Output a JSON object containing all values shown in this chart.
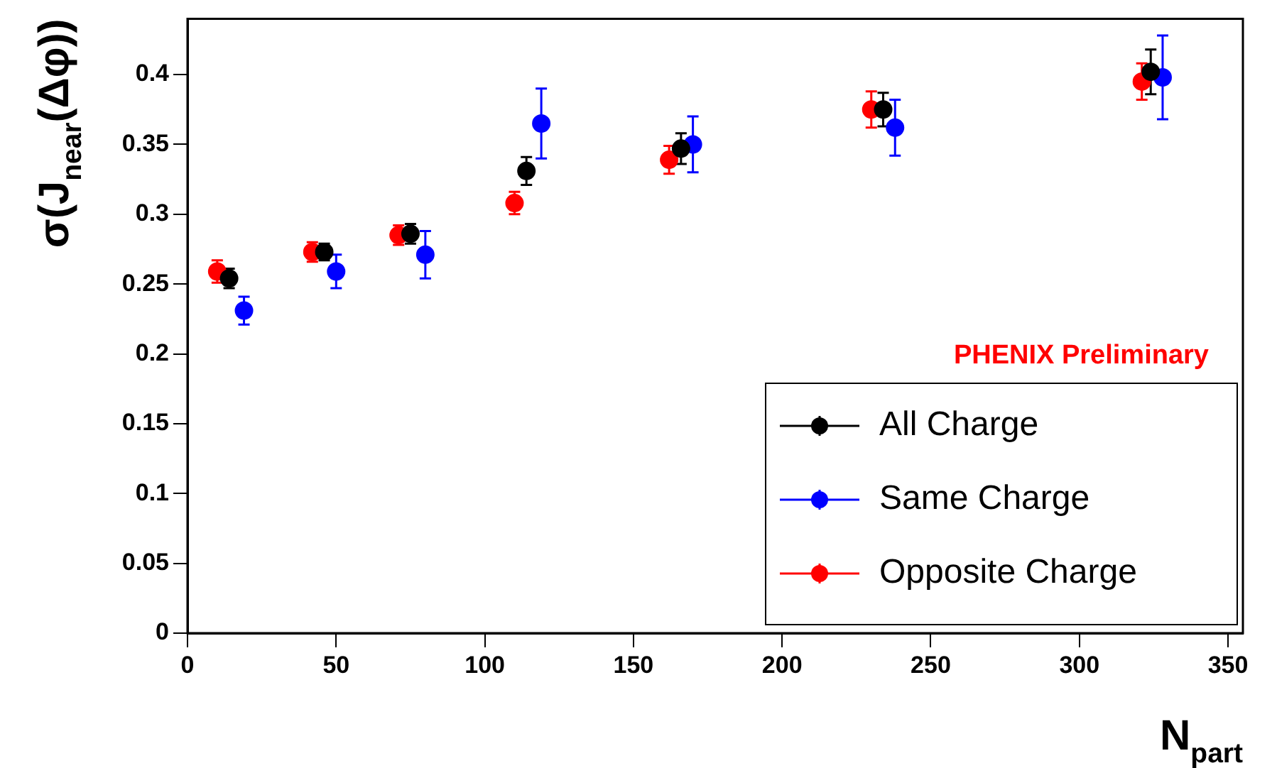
{
  "chart_data": {
    "type": "scatter",
    "xlabel": "N$_{part}$",
    "ylabel": "σ(J$_{near}$(Δφ))",
    "xlim": [
      0,
      355
    ],
    "xticks": [
      0,
      50,
      100,
      150,
      200,
      250,
      300,
      350
    ],
    "ylim": [
      0,
      0.44
    ],
    "yticks": [
      0,
      0.05,
      0.1,
      0.15,
      0.2,
      0.25,
      0.3,
      0.35,
      0.4
    ],
    "grid": false,
    "legend": "bottom right",
    "marker": "circle",
    "annotations": [
      {
        "text": "PHENIX Preliminary"
      }
    ],
    "series": [
      {
        "name": "All Charge",
        "color": "#000000",
        "x": [
          14,
          46,
          75,
          114,
          166,
          234,
          324
        ],
        "values": [
          0.254,
          0.273,
          0.286,
          0.331,
          0.347,
          0.375,
          0.402
        ],
        "errors": [
          0.007,
          0.006,
          0.007,
          0.01,
          0.011,
          0.012,
          0.016
        ]
      },
      {
        "name": "Same Charge",
        "color": "#0000ff",
        "x": [
          19,
          50,
          80,
          119,
          170,
          238,
          328
        ],
        "values": [
          0.231,
          0.259,
          0.271,
          0.365,
          0.35,
          0.362,
          0.398
        ],
        "errors": [
          0.01,
          0.012,
          0.017,
          0.025,
          0.02,
          0.02,
          0.03
        ]
      },
      {
        "name": "Opposite Charge",
        "color": "#ff0000",
        "x": [
          10,
          42,
          71,
          110,
          162,
          230,
          321
        ],
        "values": [
          0.259,
          0.273,
          0.285,
          0.308,
          0.339,
          0.375,
          0.395
        ],
        "errors": [
          0.008,
          0.007,
          0.007,
          0.008,
          0.01,
          0.013,
          0.013
        ]
      }
    ]
  }
}
